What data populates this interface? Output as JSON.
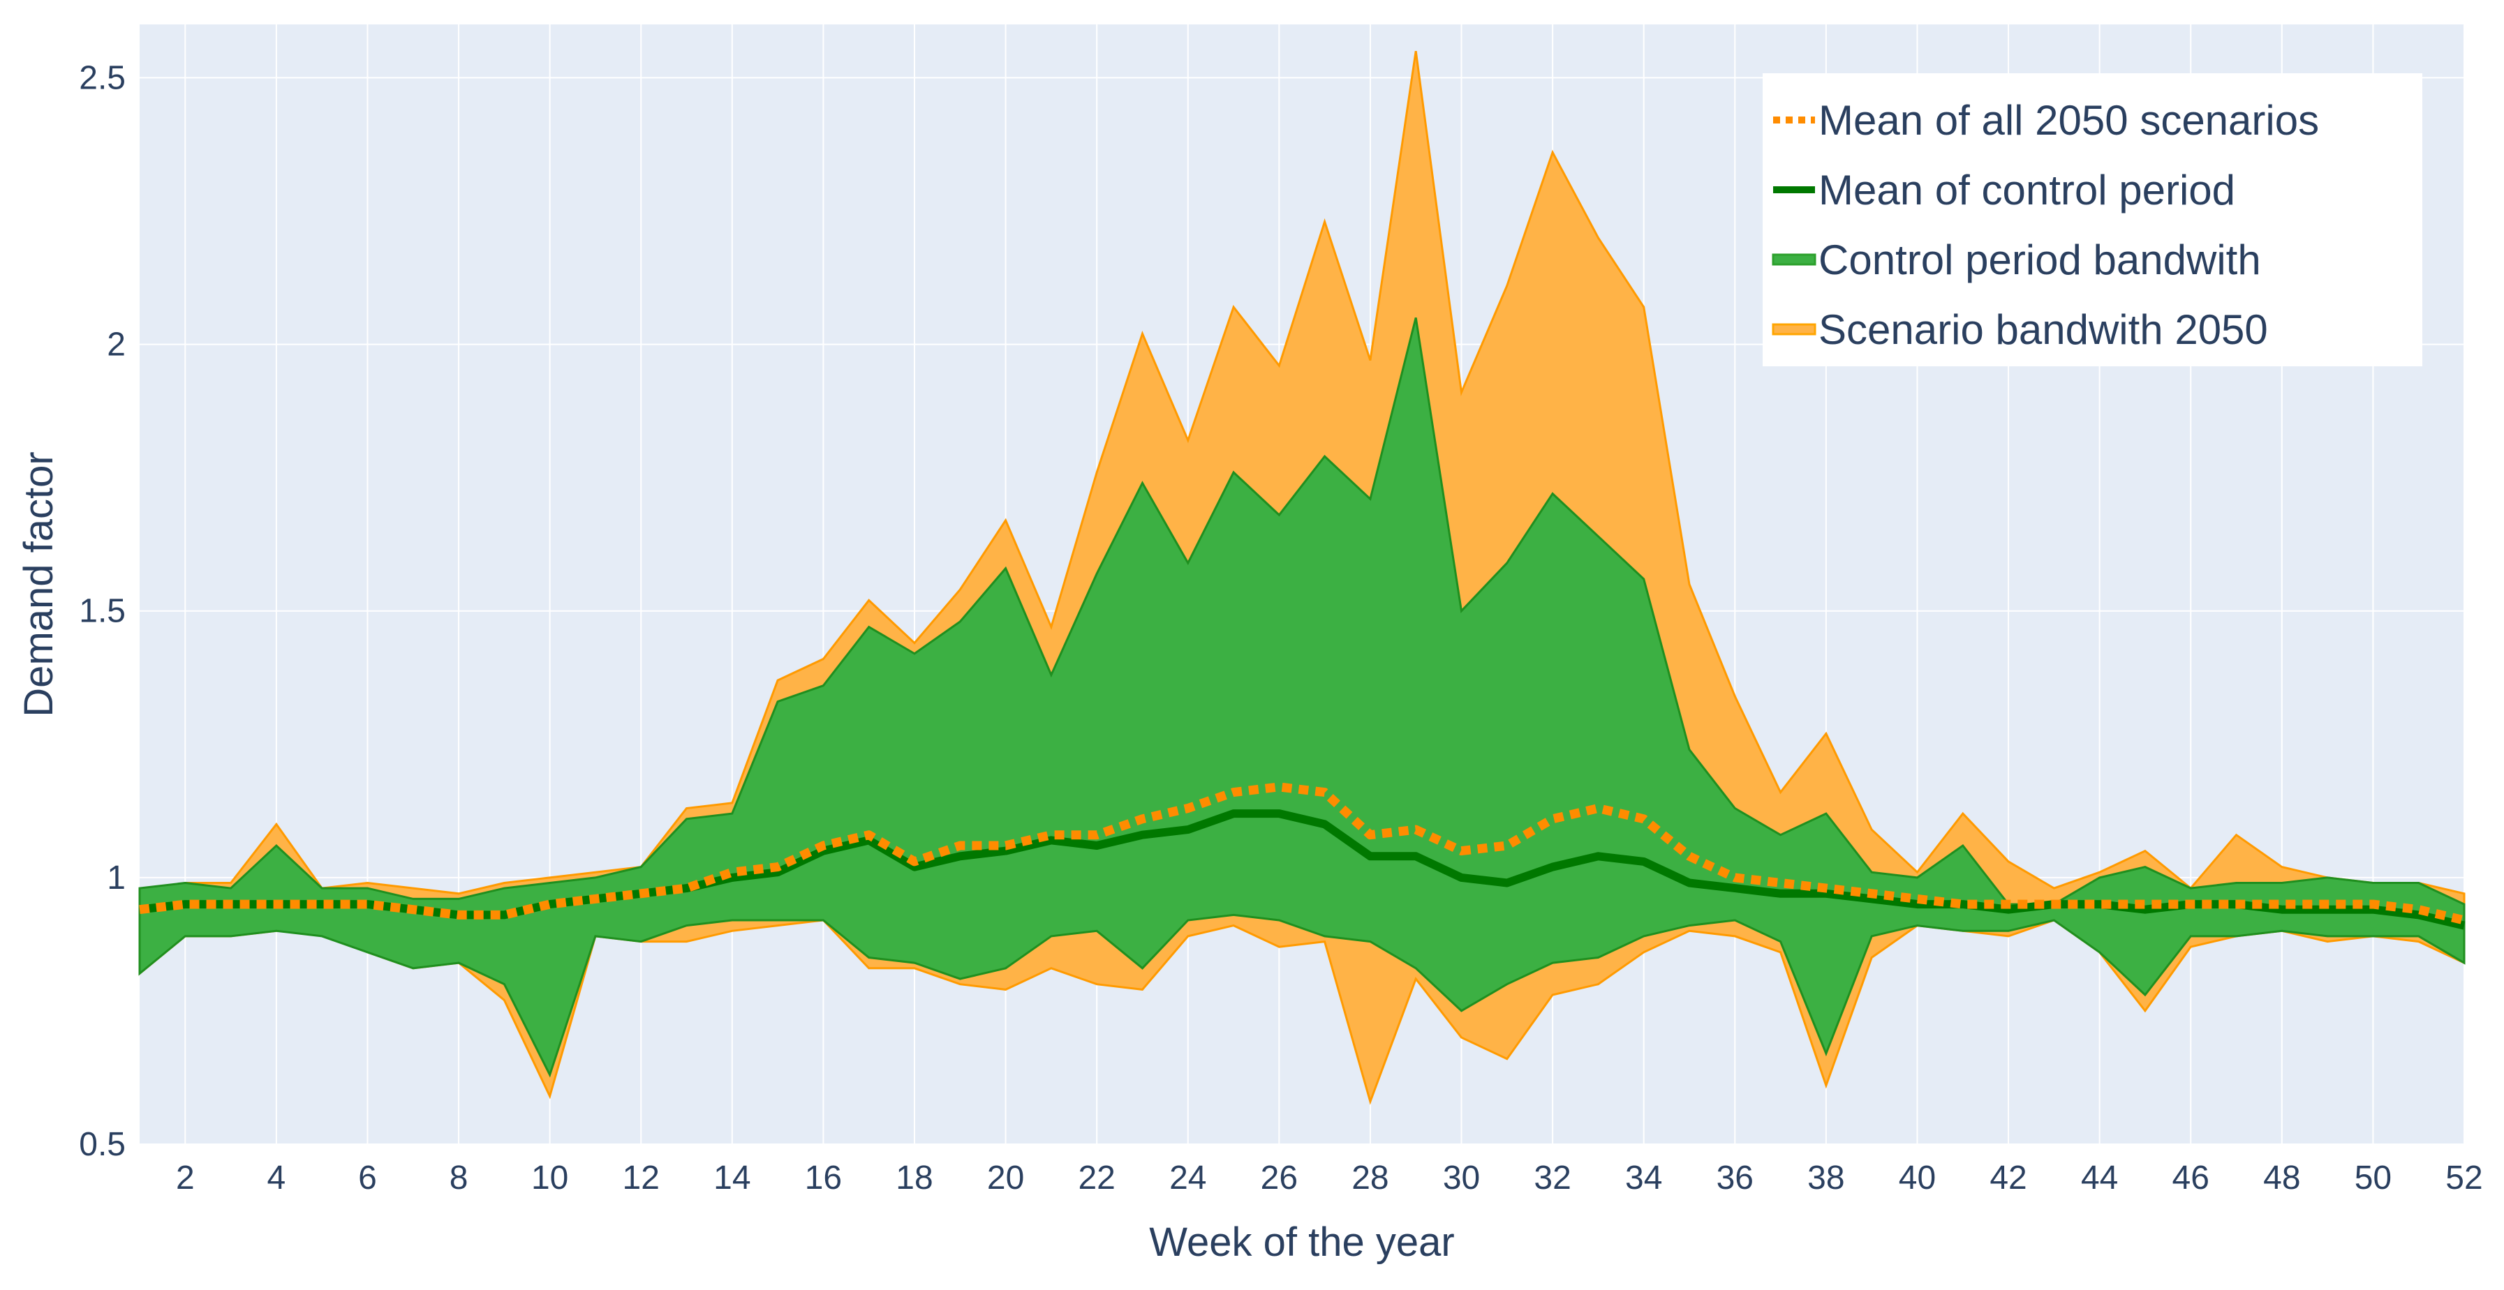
{
  "chart_data": {
    "type": "area",
    "xlabel": "Week of the year",
    "ylabel": "Demand factor",
    "xlim": [
      1,
      52
    ],
    "ylim": [
      0.5,
      2.6
    ],
    "x_ticks": [
      2,
      4,
      6,
      8,
      10,
      12,
      14,
      16,
      18,
      20,
      22,
      24,
      26,
      28,
      30,
      32,
      34,
      36,
      38,
      40,
      42,
      44,
      46,
      48,
      50,
      52
    ],
    "y_ticks": [
      0.5,
      1,
      1.5,
      2,
      2.5
    ],
    "y_tick_labels": [
      "0.5",
      "1",
      "1.5",
      "2",
      "2.5"
    ],
    "grid": true,
    "legend_position": "top-right",
    "x": [
      1,
      2,
      3,
      4,
      5,
      6,
      7,
      8,
      9,
      10,
      11,
      12,
      13,
      14,
      15,
      16,
      17,
      18,
      19,
      20,
      21,
      22,
      23,
      24,
      25,
      26,
      27,
      28,
      29,
      30,
      31,
      32,
      33,
      34,
      35,
      36,
      37,
      38,
      39,
      40,
      41,
      42,
      43,
      44,
      45,
      46,
      47,
      48,
      49,
      50,
      51,
      52
    ],
    "series": [
      {
        "name": "Scenario bandwith 2050",
        "kind": "band",
        "color": "#ffa500",
        "upper": [
          0.97,
          0.99,
          0.99,
          1.1,
          0.98,
          0.99,
          0.98,
          0.97,
          0.99,
          1.0,
          1.01,
          1.02,
          1.13,
          1.14,
          1.37,
          1.41,
          1.52,
          1.44,
          1.54,
          1.67,
          1.47,
          1.76,
          2.02,
          1.82,
          2.07,
          1.96,
          2.23,
          1.97,
          2.55,
          1.91,
          2.11,
          2.36,
          2.2,
          2.07,
          1.55,
          1.34,
          1.16,
          1.27,
          1.09,
          1.01,
          1.12,
          1.03,
          0.98,
          1.01,
          1.05,
          0.98,
          1.08,
          1.02,
          1.0,
          0.99,
          0.99,
          0.97
        ],
        "lower": [
          0.82,
          0.89,
          0.89,
          0.9,
          0.9,
          0.86,
          0.83,
          0.84,
          0.77,
          0.59,
          0.89,
          0.88,
          0.88,
          0.9,
          0.91,
          0.92,
          0.83,
          0.83,
          0.8,
          0.79,
          0.83,
          0.8,
          0.79,
          0.89,
          0.91,
          0.87,
          0.88,
          0.58,
          0.81,
          0.7,
          0.66,
          0.78,
          0.8,
          0.86,
          0.9,
          0.89,
          0.86,
          0.61,
          0.85,
          0.91,
          0.9,
          0.89,
          0.92,
          0.86,
          0.75,
          0.87,
          0.89,
          0.9,
          0.88,
          0.89,
          0.88,
          0.84
        ]
      },
      {
        "name": "Control period bandwith",
        "kind": "band",
        "color": "#2ca02c",
        "upper": [
          0.98,
          0.99,
          0.98,
          1.06,
          0.98,
          0.98,
          0.96,
          0.96,
          0.98,
          0.99,
          1.0,
          1.02,
          1.11,
          1.12,
          1.33,
          1.36,
          1.47,
          1.42,
          1.48,
          1.58,
          1.38,
          1.57,
          1.74,
          1.59,
          1.76,
          1.68,
          1.79,
          1.71,
          2.05,
          1.5,
          1.59,
          1.72,
          1.64,
          1.56,
          1.24,
          1.13,
          1.08,
          1.12,
          1.01,
          1.0,
          1.06,
          0.95,
          0.95,
          1.0,
          1.02,
          0.98,
          0.99,
          0.99,
          1.0,
          0.99,
          0.99,
          0.95
        ],
        "lower": [
          0.82,
          0.89,
          0.89,
          0.9,
          0.89,
          0.86,
          0.83,
          0.84,
          0.8,
          0.63,
          0.89,
          0.88,
          0.91,
          0.92,
          0.92,
          0.92,
          0.85,
          0.84,
          0.81,
          0.83,
          0.89,
          0.9,
          0.83,
          0.92,
          0.93,
          0.92,
          0.89,
          0.88,
          0.83,
          0.75,
          0.8,
          0.84,
          0.85,
          0.89,
          0.91,
          0.92,
          0.88,
          0.67,
          0.89,
          0.91,
          0.9,
          0.9,
          0.92,
          0.86,
          0.78,
          0.89,
          0.89,
          0.9,
          0.89,
          0.89,
          0.89,
          0.84
        ]
      },
      {
        "name": "Mean of control period",
        "kind": "line",
        "color": "#007800",
        "values": [
          0.94,
          0.95,
          0.95,
          0.95,
          0.95,
          0.95,
          0.94,
          0.93,
          0.93,
          0.95,
          0.96,
          0.97,
          0.98,
          1.0,
          1.01,
          1.05,
          1.07,
          1.02,
          1.04,
          1.05,
          1.07,
          1.06,
          1.08,
          1.09,
          1.12,
          1.12,
          1.1,
          1.04,
          1.04,
          1.0,
          0.99,
          1.02,
          1.04,
          1.03,
          0.99,
          0.98,
          0.97,
          0.97,
          0.96,
          0.95,
          0.95,
          0.94,
          0.95,
          0.95,
          0.94,
          0.95,
          0.95,
          0.94,
          0.94,
          0.94,
          0.93,
          0.91
        ]
      },
      {
        "name": "Mean of all 2050 scenarios",
        "kind": "dotted-line",
        "color": "#ff8c00",
        "values": [
          0.94,
          0.95,
          0.95,
          0.95,
          0.95,
          0.95,
          0.94,
          0.93,
          0.93,
          0.95,
          0.96,
          0.97,
          0.98,
          1.01,
          1.02,
          1.06,
          1.08,
          1.03,
          1.06,
          1.06,
          1.08,
          1.08,
          1.11,
          1.13,
          1.16,
          1.17,
          1.16,
          1.08,
          1.09,
          1.05,
          1.06,
          1.11,
          1.13,
          1.11,
          1.04,
          1.0,
          0.99,
          0.98,
          0.97,
          0.96,
          0.95,
          0.95,
          0.95,
          0.95,
          0.95,
          0.95,
          0.95,
          0.95,
          0.95,
          0.95,
          0.94,
          0.92
        ]
      }
    ],
    "legend": [
      {
        "label": "Mean of all 2050 scenarios",
        "style": "dotted",
        "color": "#ff8c00"
      },
      {
        "label": "Mean of control period",
        "style": "line",
        "color": "#007800"
      },
      {
        "label": "Control period bandwith",
        "style": "band",
        "color": "#2ca02c"
      },
      {
        "label": "Scenario bandwith 2050",
        "style": "band",
        "color": "#ffa500"
      }
    ],
    "plot_background": "#e5ecf6",
    "grid_color": "#ffffff"
  }
}
